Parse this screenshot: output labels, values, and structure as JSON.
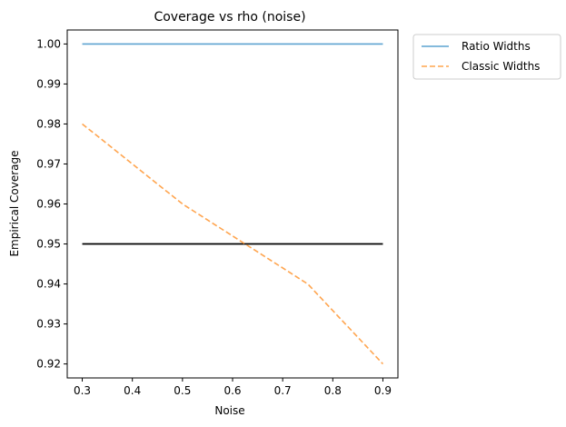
{
  "chart_data": {
    "type": "line",
    "title": "Coverage vs rho (noise)",
    "xlabel": "Noise",
    "ylabel": "Empirical Coverage",
    "xlim": [
      0.27,
      0.93
    ],
    "ylim": [
      0.9165,
      1.0035
    ],
    "xticks": [
      0.3,
      0.4,
      0.5,
      0.6,
      0.7,
      0.8,
      0.9
    ],
    "xtick_labels": [
      "0.3",
      "0.4",
      "0.5",
      "0.6",
      "0.7",
      "0.8",
      "0.9"
    ],
    "yticks": [
      0.92,
      0.93,
      0.94,
      0.95,
      0.96,
      0.97,
      0.98,
      0.99,
      1.0
    ],
    "ytick_labels": [
      "0.92",
      "0.93",
      "0.94",
      "0.95",
      "0.96",
      "0.97",
      "0.98",
      "0.99",
      "1.00"
    ],
    "grid": false,
    "legend_position": "outside-top-right",
    "series": [
      {
        "name": "Ratio Widths",
        "color": "#5ba3d0",
        "style": "solid",
        "x": [
          0.3,
          0.5,
          0.75,
          0.9
        ],
        "y": [
          1.0,
          1.0,
          1.0,
          1.0
        ]
      },
      {
        "name": "Classic Widths",
        "color": "#ffa54f",
        "style": "dashed",
        "x": [
          0.3,
          0.5,
          0.75,
          0.9
        ],
        "y": [
          0.98,
          0.96,
          0.94,
          0.92
        ]
      }
    ],
    "reference_line": {
      "y": 0.95,
      "x_range": [
        0.3,
        0.9
      ],
      "color": "#000000"
    }
  }
}
